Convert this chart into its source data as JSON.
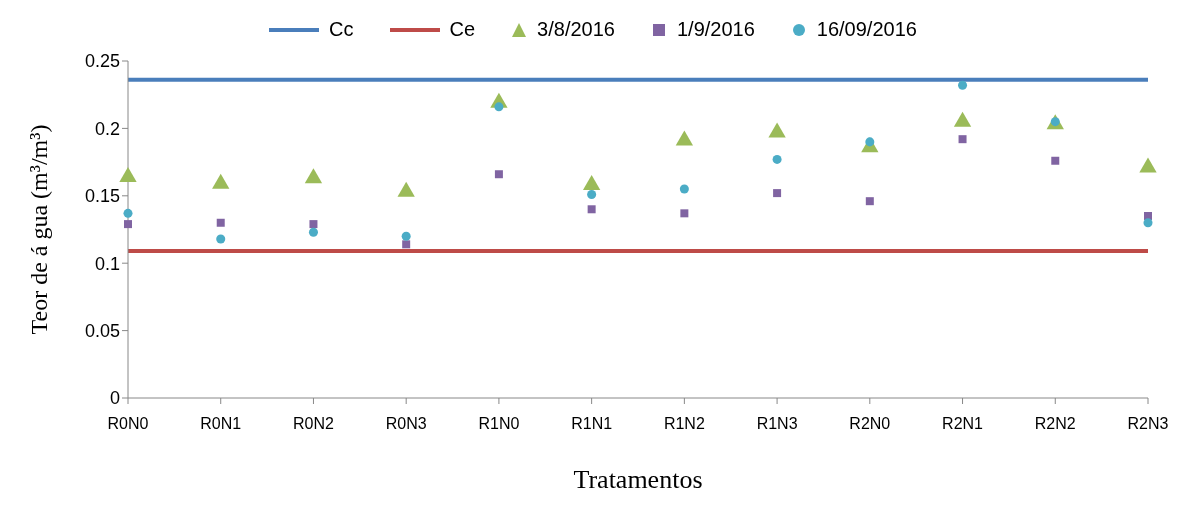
{
  "chart_data": {
    "type": "scatter",
    "xlabel": "Tratamentos",
    "ylabel": "Teor de á gua (m³/m³)",
    "categories": [
      "R0N0",
      "R0N1",
      "R0N2",
      "R0N3",
      "R1N0",
      "R1N1",
      "R1N2",
      "R1N3",
      "R2N0",
      "R2N1",
      "R2N2",
      "R2N3"
    ],
    "series": [
      {
        "name": "Cc",
        "type": "line",
        "color": "#4a7ebb",
        "values": [
          0.236,
          0.236,
          0.236,
          0.236,
          0.236,
          0.236,
          0.236,
          0.236,
          0.236,
          0.236,
          0.236,
          0.236
        ]
      },
      {
        "name": "Ce",
        "type": "line",
        "color": "#be4b48",
        "values": [
          0.109,
          0.109,
          0.109,
          0.109,
          0.109,
          0.109,
          0.109,
          0.109,
          0.109,
          0.109,
          0.109,
          0.109
        ]
      },
      {
        "name": "3/8/2016",
        "marker": "triangle",
        "color": "#9bbb59",
        "values": [
          0.164,
          0.159,
          0.163,
          0.153,
          0.219,
          0.158,
          0.191,
          0.197,
          0.186,
          0.205,
          0.203,
          0.171
        ]
      },
      {
        "name": "1/9/2016",
        "marker": "square",
        "color": "#8064a2",
        "values": [
          0.129,
          0.13,
          0.129,
          0.114,
          0.166,
          0.14,
          0.137,
          0.152,
          0.146,
          0.192,
          0.176,
          0.135
        ]
      },
      {
        "name": "16/09/2016",
        "marker": "circle",
        "color": "#4bacc6",
        "values": [
          0.137,
          0.118,
          0.123,
          0.12,
          0.216,
          0.151,
          0.155,
          0.177,
          0.19,
          0.232,
          0.205,
          0.13
        ]
      }
    ],
    "ylim": [
      0,
      0.25
    ],
    "yticks": [
      0,
      0.05,
      0.1,
      0.15,
      0.2,
      0.25
    ],
    "grid": false,
    "legend": "top"
  }
}
